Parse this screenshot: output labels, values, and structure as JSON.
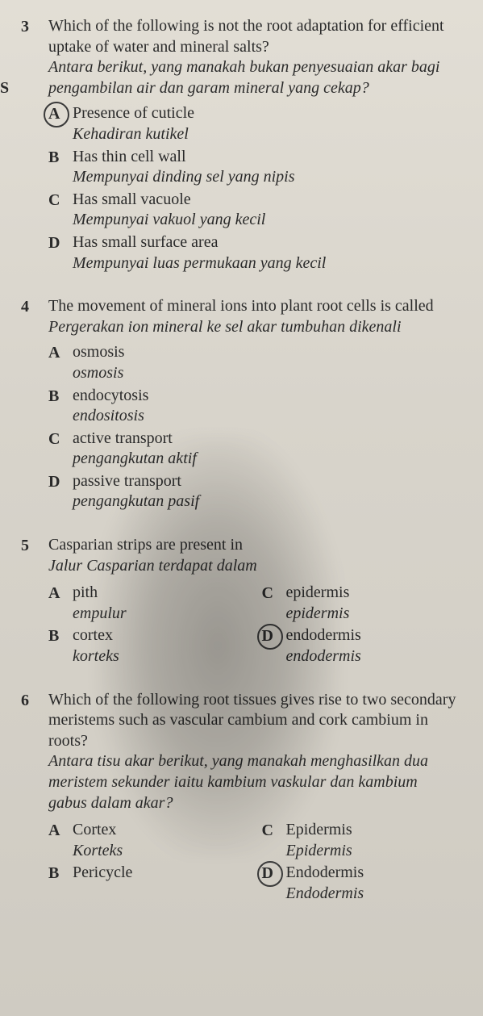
{
  "edge_letter": "S",
  "questions": [
    {
      "num": "3",
      "en": "Which of the following is not the root adaptation for efficient uptake of water and mineral salts?",
      "ms": "Antara berikut, yang manakah bukan penyesuaian akar bagi pengambilan air dan garam mineral yang cekap?",
      "options": [
        {
          "letter": "A",
          "en": "Presence of cuticle",
          "ms": "Kehadiran kutikel",
          "circled": true
        },
        {
          "letter": "B",
          "en": "Has thin cell wall",
          "ms": "Mempunyai dinding sel yang nipis",
          "circled": false
        },
        {
          "letter": "C",
          "en": "Has small vacuole",
          "ms": "Mempunyai vakuol yang kecil",
          "circled": false
        },
        {
          "letter": "D",
          "en": "Has small surface area",
          "ms": "Mempunyai luas permukaan yang kecil",
          "circled": false
        }
      ]
    },
    {
      "num": "4",
      "en": "The movement of mineral ions into plant root cells is called",
      "ms": "Pergerakan ion mineral ke sel akar tumbuhan dikenali",
      "options": [
        {
          "letter": "A",
          "en": "osmosis",
          "ms": "osmosis",
          "circled": false
        },
        {
          "letter": "B",
          "en": "endocytosis",
          "ms": "endositosis",
          "circled": false
        },
        {
          "letter": "C",
          "en": "active transport",
          "ms": "pengangkutan aktif",
          "circled": false
        },
        {
          "letter": "D",
          "en": "passive transport",
          "ms": "pengangkutan pasif",
          "circled": false
        }
      ]
    },
    {
      "num": "5",
      "en": "Casparian strips are present in",
      "ms": "Jalur Casparian terdapat dalam",
      "two_col": true,
      "left": [
        {
          "letter": "A",
          "en": "pith",
          "ms": "empulur",
          "circled": false
        },
        {
          "letter": "B",
          "en": "cortex",
          "ms": "korteks",
          "circled": false
        }
      ],
      "right": [
        {
          "letter": "C",
          "en": "epidermis",
          "ms": "epidermis",
          "circled": false
        },
        {
          "letter": "D",
          "en": "endodermis",
          "ms": "endodermis",
          "circled": true
        }
      ]
    },
    {
      "num": "6",
      "en": "Which of the following root tissues gives rise to two secondary meristems such as vascular cambium and cork cambium in roots?",
      "ms": "Antara tisu akar berikut, yang manakah menghasilkan dua meristem sekunder iaitu kambium vaskular dan kambium gabus dalam akar?",
      "two_col": true,
      "left": [
        {
          "letter": "A",
          "en": "Cortex",
          "ms": "Korteks",
          "circled": false
        },
        {
          "letter": "B",
          "en": "Pericycle",
          "ms": "",
          "circled": false
        }
      ],
      "right": [
        {
          "letter": "C",
          "en": "Epidermis",
          "ms": "Epidermis",
          "circled": false
        },
        {
          "letter": "D",
          "en": "Endodermis",
          "ms": "Endodermis",
          "circled": true
        }
      ]
    }
  ]
}
